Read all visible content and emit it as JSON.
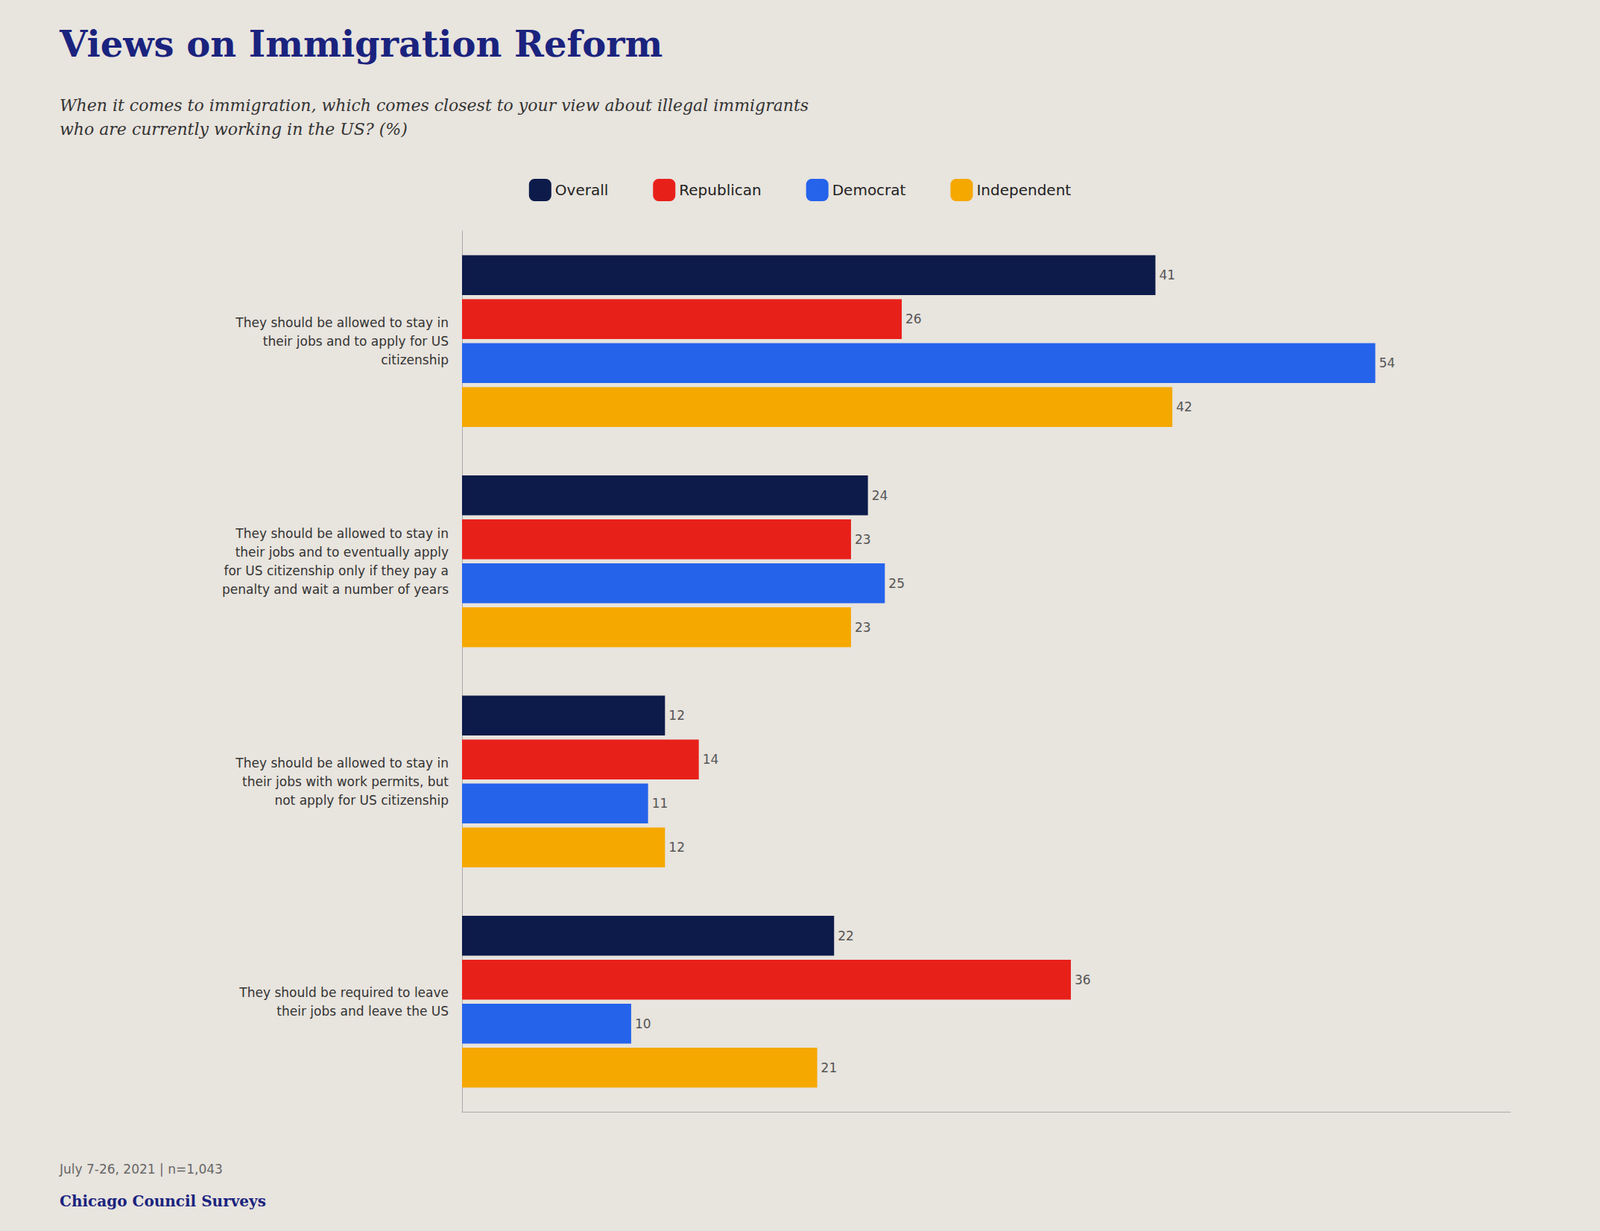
{
  "chart_data": {
    "type": "bar",
    "orientation": "horizontal",
    "title": "Views on Immigration Reform",
    "subtitle": "When it comes to immigration, which comes closest to your view about illegal immigrants\nwho are currently working in the US? (%)",
    "annotations": [
      "July 7-26, 2021 | n=1,043",
      "Chicago Council Surveys"
    ],
    "categories": [
      "They should be allowed to stay in\ntheir jobs and to apply for US\ncitizenship",
      "They should be allowed to stay in\ntheir jobs and to eventually apply\nfor US citizenship only if they pay a\npenalty and wait a number of years",
      "They should be allowed to stay in\ntheir jobs with work permits, but\nnot apply for US citizenship",
      "They should be required to leave\ntheir jobs and leave the US"
    ],
    "series": [
      {
        "name": "Overall",
        "color": "#0d1b4b",
        "values": [
          41,
          24,
          12,
          22
        ]
      },
      {
        "name": "Republican",
        "color": "#e8201a",
        "values": [
          26,
          23,
          14,
          36
        ]
      },
      {
        "name": "Democrat",
        "color": "#2563eb",
        "values": [
          54,
          25,
          11,
          10
        ]
      },
      {
        "name": "Independent",
        "color": "#f5a800",
        "values": [
          42,
          23,
          12,
          21
        ]
      }
    ],
    "xlim": [
      0,
      62
    ],
    "tick_labels": false,
    "data_labels": true,
    "grid": false,
    "legend": "top"
  }
}
